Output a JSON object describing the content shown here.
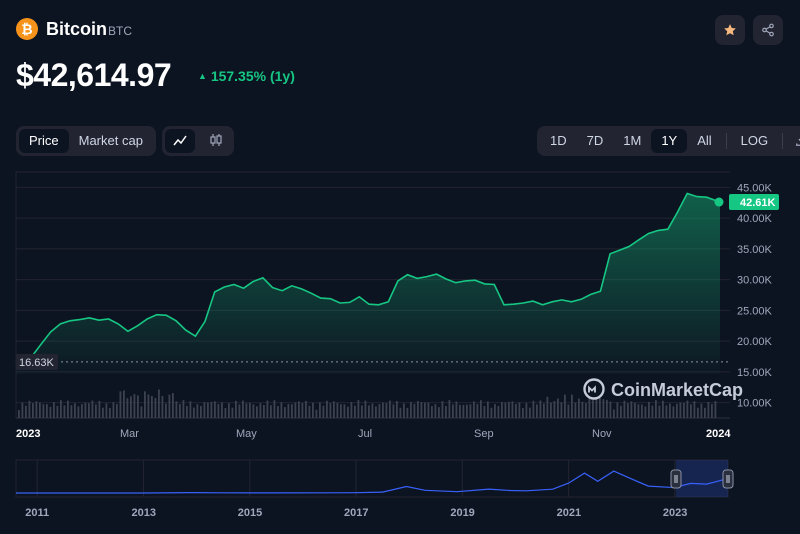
{
  "coin": {
    "logo_letter": "₿",
    "name": "Bitcoin",
    "symbol": "BTC",
    "price": "$42,614.97",
    "change": "157.35% (1y)"
  },
  "controls": {
    "type_tabs": [
      "Price",
      "Market cap"
    ],
    "active_type": "Price",
    "chart_styles": [
      "line-chart-icon",
      "candlestick-icon"
    ],
    "ranges": [
      "1D",
      "7D",
      "1M",
      "1Y",
      "All"
    ],
    "active_range": "1Y",
    "log_label": "LOG"
  },
  "colors": {
    "bg": "#0d1421",
    "up": "#16c784",
    "grid": "#222531",
    "volume": "#3d4150",
    "nav_line": "#3861fb"
  },
  "chart_data": [
    {
      "type": "area",
      "title": "",
      "y_ticks": [
        "45.00K",
        "40.00K",
        "35.00K",
        "30.00K",
        "25.00K",
        "20.00K",
        "15.00K",
        "10.00K"
      ],
      "y_tick_values": [
        45000,
        40000,
        35000,
        30000,
        25000,
        20000,
        15000,
        10000
      ],
      "ylim": [
        7500,
        47500
      ],
      "x_ticks": [
        "2023",
        "Mar",
        "May",
        "Jul",
        "Sep",
        "Nov",
        "2024"
      ],
      "current_label": "42.61K",
      "low_label": "16.63K",
      "low_value": 16630,
      "watermark": "CoinMarketCap",
      "series": [
        {
          "x": [
            0,
            8,
            13,
            18,
            23,
            28,
            33,
            38,
            43,
            48,
            53,
            58,
            63,
            68,
            73,
            78,
            83,
            88,
            93,
            98,
            103,
            108,
            113,
            118,
            123,
            128,
            133,
            138,
            143,
            148,
            153,
            158,
            163,
            168,
            173,
            178,
            183,
            188,
            193,
            198,
            203,
            208,
            213,
            218,
            223,
            228,
            233,
            238,
            243,
            248,
            253,
            258,
            263,
            268,
            273,
            278,
            283,
            288,
            293,
            298,
            303,
            308,
            313,
            318,
            323,
            328,
            333,
            338,
            343,
            348,
            353,
            358,
            365
          ],
          "values": [
            16630,
            17400,
            19500,
            21500,
            22800,
            23300,
            23500,
            23800,
            23400,
            23600,
            22800,
            21600,
            22500,
            23600,
            24300,
            24200,
            23300,
            21800,
            20800,
            23200,
            28000,
            28800,
            29200,
            28600,
            29700,
            30300,
            28700,
            28200,
            29000,
            28500,
            27800,
            27000,
            26900,
            26200,
            26300,
            27200,
            26000,
            25900,
            26400,
            29800,
            30800,
            30200,
            30500,
            30900,
            30100,
            29500,
            29800,
            29900,
            29300,
            29200,
            25900,
            26000,
            26200,
            26500,
            25900,
            26400,
            26700,
            26400,
            26800,
            27600,
            28100,
            34200,
            34800,
            35400,
            36500,
            37500,
            38000,
            38200,
            41000,
            44000,
            43500,
            43400,
            42615
          ]
        }
      ]
    },
    {
      "type": "line",
      "title": "",
      "x_ticks": [
        "2011",
        "2013",
        "2015",
        "2017",
        "2019",
        "2021",
        "2023"
      ],
      "x_tick_values": [
        2011,
        2013,
        2015,
        2017,
        2019,
        2021,
        2023
      ],
      "xlim": [
        2010.6,
        2024.0
      ],
      "ylim": [
        0,
        70000
      ],
      "series": [
        {
          "x": [
            2010.6,
            2012.0,
            2013.0,
            2013.9,
            2014.5,
            2015.5,
            2016.5,
            2017.0,
            2017.5,
            2017.95,
            2018.3,
            2018.9,
            2019.5,
            2019.9,
            2020.2,
            2020.7,
            2021.0,
            2021.3,
            2021.55,
            2021.85,
            2022.2,
            2022.5,
            2022.9,
            2023.0,
            2023.3,
            2023.6,
            2023.8,
            2024.0
          ],
          "values": [
            0,
            5,
            100,
            1100,
            600,
            250,
            650,
            1000,
            2500,
            19000,
            8000,
            3700,
            11500,
            7200,
            6500,
            11000,
            29000,
            58000,
            34000,
            64000,
            40000,
            20000,
            16500,
            16600,
            28000,
            26000,
            34000,
            42600
          ]
        }
      ]
    }
  ]
}
